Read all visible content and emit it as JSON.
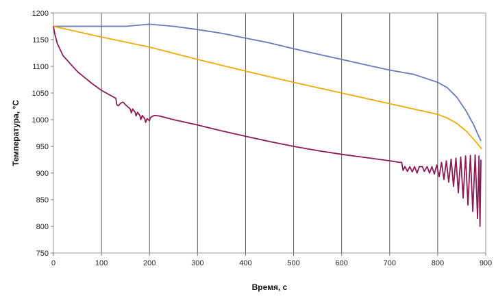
{
  "chart_data": {
    "type": "line",
    "xlabel": "Время, с",
    "ylabel": "Температура, °С",
    "xlim": [
      0,
      900
    ],
    "ylim": [
      750,
      1200
    ],
    "x_ticks": [
      0,
      100,
      200,
      300,
      400,
      500,
      600,
      700,
      800,
      900
    ],
    "y_ticks": [
      750,
      800,
      850,
      900,
      950,
      1000,
      1050,
      1100,
      1150,
      1200
    ],
    "grid": "vertical",
    "legend": "none",
    "series": [
      {
        "color": "#6b78b8",
        "points": [
          [
            0,
            1175
          ],
          [
            50,
            1175
          ],
          [
            100,
            1175
          ],
          [
            150,
            1175
          ],
          [
            200,
            1179
          ],
          [
            250,
            1175
          ],
          [
            300,
            1169
          ],
          [
            350,
            1162
          ],
          [
            400,
            1153
          ],
          [
            450,
            1144
          ],
          [
            500,
            1133
          ],
          [
            550,
            1123
          ],
          [
            600,
            1113
          ],
          [
            650,
            1103
          ],
          [
            700,
            1093
          ],
          [
            750,
            1085
          ],
          [
            800,
            1070
          ],
          [
            820,
            1060
          ],
          [
            840,
            1042
          ],
          [
            860,
            1015
          ],
          [
            875,
            990
          ],
          [
            890,
            960
          ]
        ]
      },
      {
        "color": "#f2a900",
        "points": [
          [
            0,
            1175
          ],
          [
            100,
            1155
          ],
          [
            200,
            1136
          ],
          [
            300,
            1113
          ],
          [
            400,
            1091
          ],
          [
            500,
            1070
          ],
          [
            600,
            1050
          ],
          [
            700,
            1030
          ],
          [
            800,
            1010
          ],
          [
            820,
            1003
          ],
          [
            840,
            993
          ],
          [
            860,
            978
          ],
          [
            880,
            958
          ],
          [
            892,
            945
          ]
        ]
      },
      {
        "color": "#8b1a55",
        "points": [
          [
            0,
            1175
          ],
          [
            3,
            1160
          ],
          [
            8,
            1143
          ],
          [
            20,
            1120
          ],
          [
            50,
            1090
          ],
          [
            80,
            1068
          ],
          [
            100,
            1055
          ],
          [
            130,
            1040
          ],
          [
            132,
            1028
          ],
          [
            135,
            1026
          ],
          [
            140,
            1031
          ],
          [
            145,
            1033
          ],
          [
            150,
            1028
          ],
          [
            160,
            1020
          ],
          [
            162,
            1013
          ],
          [
            165,
            1020
          ],
          [
            170,
            1014
          ],
          [
            172,
            1007
          ],
          [
            175,
            1014
          ],
          [
            180,
            1008
          ],
          [
            182,
            1000
          ],
          [
            185,
            1008
          ],
          [
            190,
            1002
          ],
          [
            192,
            995
          ],
          [
            195,
            1002
          ],
          [
            200,
            998
          ],
          [
            202,
            1004
          ],
          [
            210,
            1008
          ],
          [
            220,
            1007
          ],
          [
            250,
            1000
          ],
          [
            300,
            990
          ],
          [
            350,
            979
          ],
          [
            400,
            969
          ],
          [
            450,
            959
          ],
          [
            500,
            950
          ],
          [
            550,
            942
          ],
          [
            600,
            935
          ],
          [
            650,
            929
          ],
          [
            700,
            923
          ],
          [
            720,
            920
          ],
          [
            725,
            920
          ],
          [
            728,
            905
          ],
          [
            732,
            912
          ],
          [
            737,
            903
          ],
          [
            742,
            912
          ],
          [
            747,
            902
          ],
          [
            752,
            912
          ],
          [
            757,
            900
          ],
          [
            762,
            912
          ],
          [
            768,
            912
          ],
          [
            772,
            903
          ],
          [
            778,
            912
          ],
          [
            783,
            900
          ],
          [
            788,
            912
          ],
          [
            793,
            898
          ],
          [
            798,
            915
          ],
          [
            803,
            893
          ],
          [
            808,
            920
          ],
          [
            813,
            888
          ],
          [
            818,
            923
          ],
          [
            823,
            883
          ],
          [
            828,
            926
          ],
          [
            833,
            875
          ],
          [
            838,
            928
          ],
          [
            843,
            863
          ],
          [
            848,
            930
          ],
          [
            853,
            853
          ],
          [
            858,
            932
          ],
          [
            863,
            840
          ],
          [
            868,
            933
          ],
          [
            873,
            828
          ],
          [
            878,
            934
          ],
          [
            883,
            815
          ],
          [
            886,
            932
          ],
          [
            888,
            800
          ],
          [
            890,
            925
          ]
        ]
      }
    ]
  }
}
